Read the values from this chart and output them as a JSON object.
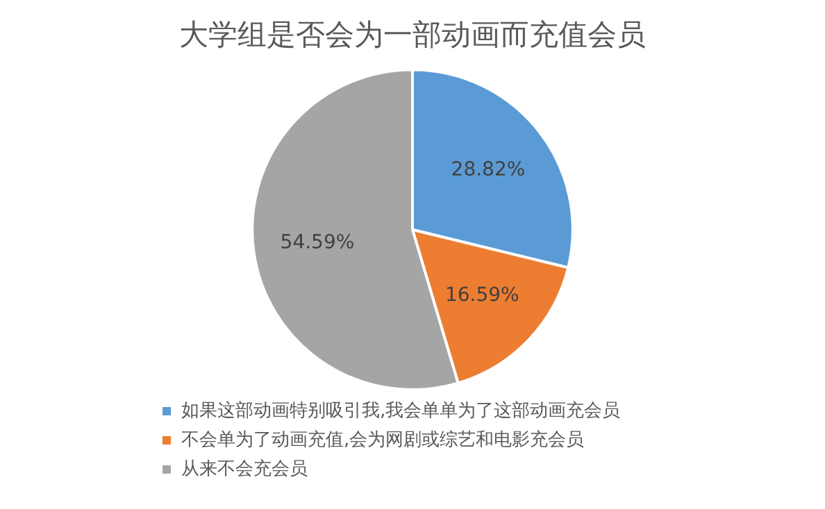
{
  "chart_data": {
    "type": "pie",
    "title": "大学组是否会为一部动画而充值会员",
    "categories": [
      "如果这部动画特别吸引我,我会单单为了这部动画充会员",
      "不会单为了动画充值,会为网剧或综艺和电影充会员",
      "从来不会充会员"
    ],
    "values": [
      28.82,
      16.59,
      54.59
    ],
    "colors": [
      "#5b9bd5",
      "#ed7d31",
      "#a5a5a5"
    ],
    "value_labels": [
      "28.82%",
      "16.59%",
      "54.59%"
    ],
    "legend": "bottom"
  }
}
